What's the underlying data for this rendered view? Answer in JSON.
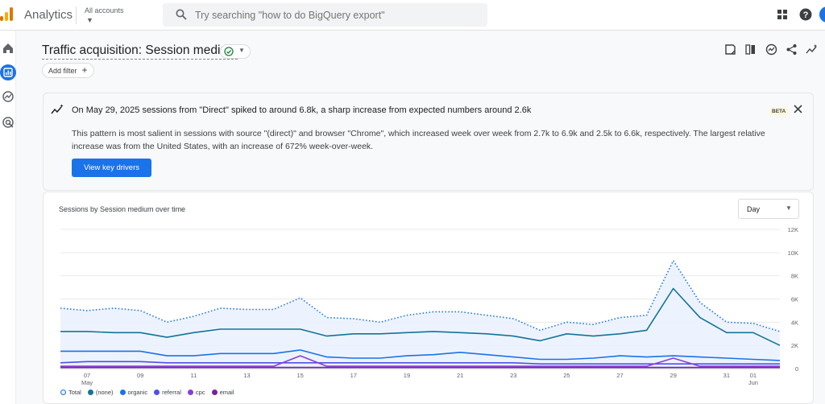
{
  "app": {
    "name": "Analytics",
    "account_label": "All accounts",
    "search_placeholder": "Try searching \"how to do BigQuery export\"",
    "icons": [
      "apps-grid-icon",
      "help-icon"
    ]
  },
  "sidenav": {
    "items": [
      {
        "name": "home-icon"
      },
      {
        "name": "reports-icon"
      },
      {
        "name": "explore-icon"
      },
      {
        "name": "advertising-icon"
      }
    ]
  },
  "page": {
    "title": "Traffic acquisition: Session medium",
    "add_filter_label": "Add filter"
  },
  "insight": {
    "headline": "On May 29, 2025 sessions from \"Direct\" spiked to around 6.8k, a sharp increase from expected numbers around 2.6k",
    "badge": "BETA",
    "body": "This pattern is most salient in sessions with source \"(direct)\" and browser \"Chrome\", which increased week over week from 2.7k to 6.9k and 2.5k to 6.6k, respectively. The largest relative increase was from the United States, with an increase of 672% week-over-week.",
    "button_label": "View key drivers"
  },
  "chart_card": {
    "title": "Sessions by Session medium over time",
    "granularity": "Day"
  },
  "chart_data": {
    "type": "line",
    "x": [
      "May 06",
      "May 07",
      "May 08",
      "May 09",
      "May 10",
      "May 11",
      "May 12",
      "May 13",
      "May 14",
      "May 15",
      "May 16",
      "May 17",
      "May 18",
      "May 19",
      "May 20",
      "May 21",
      "May 22",
      "May 23",
      "May 24",
      "May 25",
      "May 26",
      "May 27",
      "May 28",
      "May 29",
      "May 30",
      "May 31",
      "Jun 01",
      "Jun 02"
    ],
    "x_tick_labels": [
      {
        "label": "07",
        "sub": "May",
        "index": 1
      },
      {
        "label": "09",
        "sub": "",
        "index": 3
      },
      {
        "label": "11",
        "sub": "",
        "index": 5
      },
      {
        "label": "13",
        "sub": "",
        "index": 7
      },
      {
        "label": "15",
        "sub": "",
        "index": 9
      },
      {
        "label": "17",
        "sub": "",
        "index": 11
      },
      {
        "label": "19",
        "sub": "",
        "index": 13
      },
      {
        "label": "21",
        "sub": "",
        "index": 15
      },
      {
        "label": "23",
        "sub": "",
        "index": 17
      },
      {
        "label": "25",
        "sub": "",
        "index": 19
      },
      {
        "label": "27",
        "sub": "",
        "index": 21
      },
      {
        "label": "29",
        "sub": "",
        "index": 23
      },
      {
        "label": "31",
        "sub": "",
        "index": 25
      },
      {
        "label": "01",
        "sub": "Jun",
        "index": 26
      }
    ],
    "y_ticks": [
      "0",
      "2K",
      "4K",
      "6K",
      "8K",
      "10K",
      "12K"
    ],
    "ylim": [
      0,
      12000
    ],
    "grid": true,
    "legend_position": "bottom-left",
    "series": [
      {
        "name": "Total",
        "color": "#1a73e8",
        "style": "dotted",
        "fill": true,
        "values": [
          5200,
          5000,
          5200,
          5000,
          4000,
          4500,
          5200,
          5100,
          5100,
          6100,
          4400,
          4300,
          4000,
          4600,
          4900,
          4900,
          4600,
          4300,
          3300,
          4000,
          3800,
          4400,
          4600,
          9300,
          5700,
          4000,
          3900,
          3200
        ]
      },
      {
        "name": "(none)",
        "color": "#12749a",
        "style": "solid",
        "fill": false,
        "values": [
          3200,
          3200,
          3100,
          3100,
          2700,
          3100,
          3400,
          3400,
          3400,
          3400,
          2800,
          3000,
          3000,
          3100,
          3200,
          3100,
          3000,
          2800,
          2400,
          3000,
          2800,
          3000,
          3300,
          6900,
          4400,
          3100,
          3100,
          2000
        ]
      },
      {
        "name": "organic",
        "color": "#1a73e8",
        "style": "solid",
        "fill": false,
        "values": [
          1500,
          1500,
          1500,
          1500,
          1100,
          1100,
          1300,
          1300,
          1300,
          1600,
          1000,
          900,
          900,
          1100,
          1200,
          1400,
          1200,
          1000,
          800,
          800,
          900,
          1100,
          1000,
          1100,
          1000,
          900,
          800,
          700
        ]
      },
      {
        "name": "referral",
        "color": "#5050e8",
        "style": "solid",
        "fill": false,
        "values": [
          500,
          600,
          600,
          600,
          500,
          500,
          500,
          500,
          500,
          500,
          500,
          500,
          500,
          500,
          500,
          500,
          500,
          500,
          400,
          400,
          400,
          400,
          400,
          400,
          400,
          400,
          400,
          400
        ]
      },
      {
        "name": "cpc",
        "color": "#8a3ed8",
        "style": "solid",
        "fill": false,
        "values": [
          200,
          200,
          200,
          200,
          200,
          200,
          200,
          200,
          200,
          1100,
          200,
          200,
          200,
          200,
          200,
          200,
          200,
          200,
          200,
          200,
          200,
          200,
          200,
          900,
          200,
          200,
          200,
          200
        ]
      },
      {
        "name": "email",
        "color": "#7b1fa2",
        "style": "solid",
        "fill": false,
        "values": [
          100,
          100,
          100,
          100,
          100,
          100,
          100,
          100,
          100,
          100,
          100,
          100,
          100,
          100,
          100,
          100,
          100,
          100,
          100,
          100,
          100,
          100,
          100,
          100,
          100,
          100,
          100,
          100
        ]
      }
    ]
  }
}
